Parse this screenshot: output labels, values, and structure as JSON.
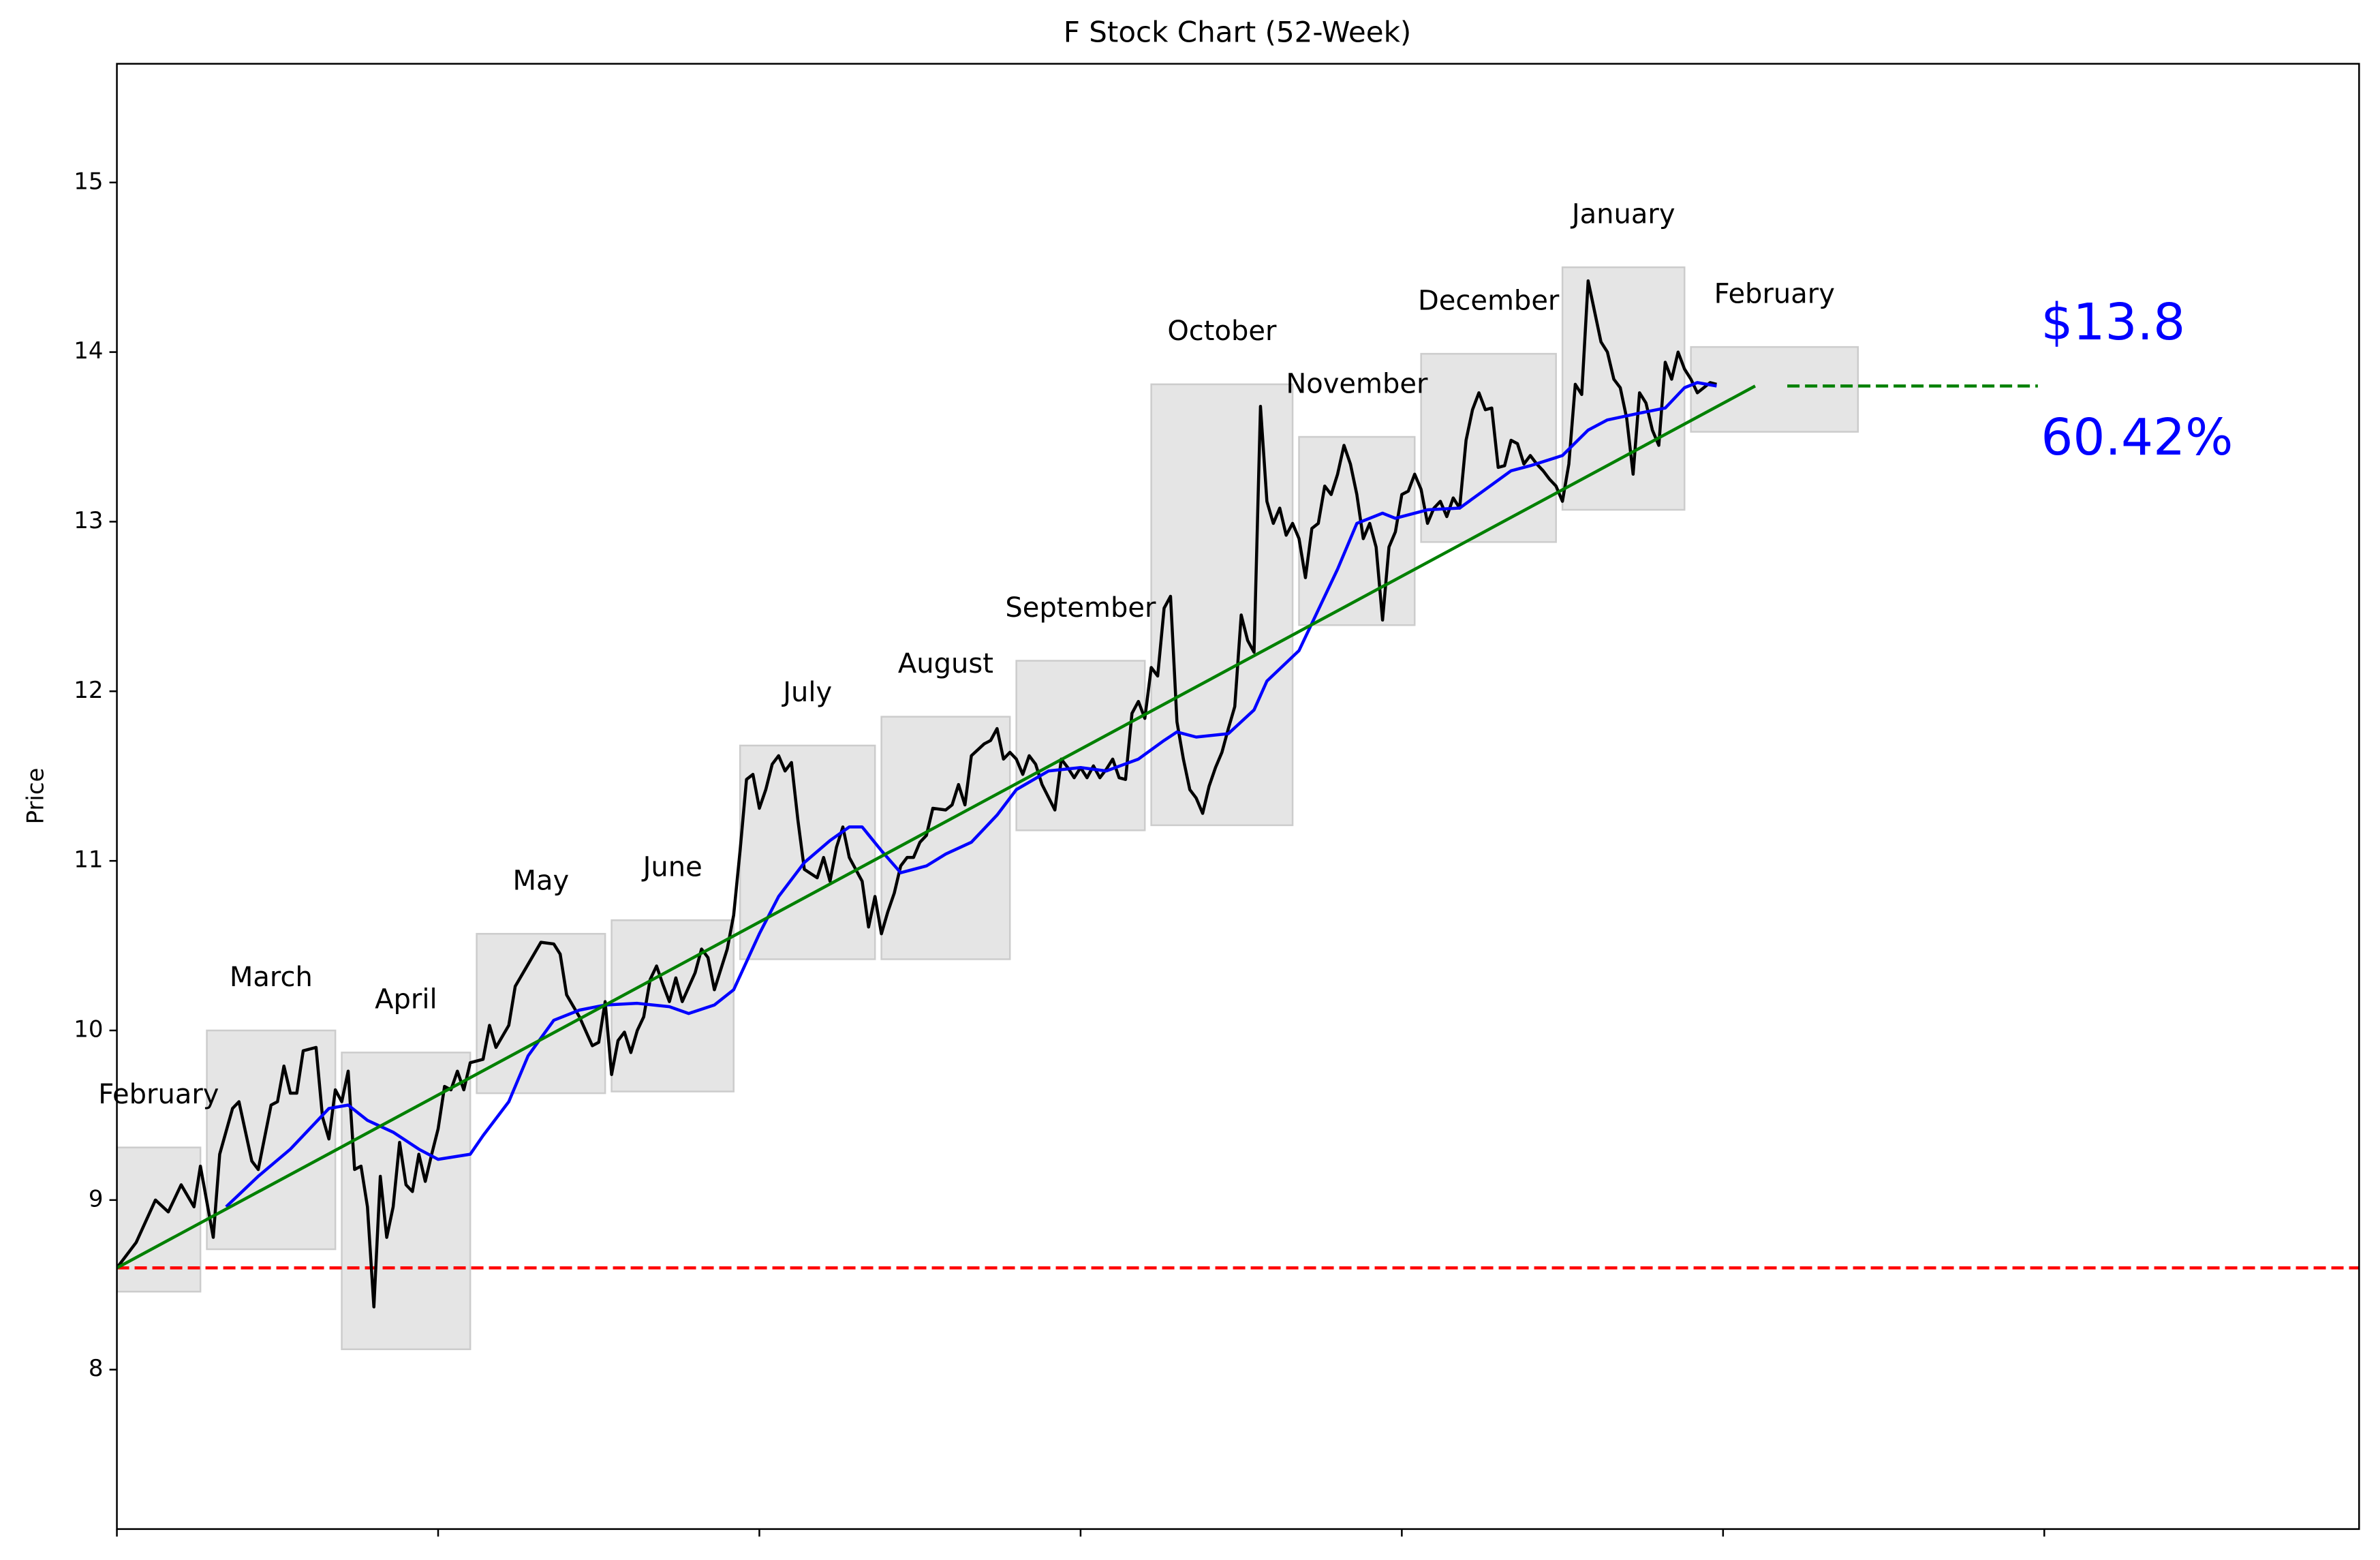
{
  "chart_data": {
    "type": "line",
    "title": "F Stock Chart (52-Week)",
    "ylabel": "Price",
    "xlim": [
      0,
      349
    ],
    "xticks": [
      0,
      50,
      100,
      150,
      200,
      250,
      300
    ],
    "ylim": [
      7.06,
      15.7
    ],
    "yticks": [
      8,
      9,
      10,
      11,
      12,
      13,
      14,
      15
    ],
    "series": [
      {
        "color": "#000000",
        "dashed": false,
        "x": [
          0,
          3,
          6,
          8,
          10,
          12,
          13,
          15,
          16,
          18,
          19,
          21,
          22,
          24,
          25,
          26,
          27,
          28,
          29,
          31,
          32,
          33,
          34,
          35,
          36,
          37,
          38,
          39,
          40,
          41,
          42,
          43,
          44,
          45,
          46,
          47,
          48,
          49,
          50,
          51,
          52,
          53,
          54,
          55,
          57,
          58,
          59,
          61,
          62,
          64,
          66,
          68,
          69,
          70,
          72,
          74,
          75,
          76,
          77,
          78,
          79,
          80,
          81,
          82,
          83,
          84,
          85,
          86,
          87,
          88,
          90,
          91,
          92,
          93,
          95,
          96,
          97,
          98,
          99,
          100,
          101,
          102,
          103,
          104,
          105,
          106,
          107,
          109,
          110,
          111,
          112,
          113,
          114,
          116,
          117,
          118,
          119,
          120,
          121,
          122,
          123,
          124,
          125,
          126,
          127,
          129,
          130,
          131,
          132,
          133,
          135,
          136,
          137,
          138,
          139,
          140,
          141,
          142,
          143,
          144,
          146,
          147,
          148,
          149,
          150,
          151,
          152,
          153,
          154,
          155,
          156,
          157,
          158,
          159,
          160,
          161,
          162,
          163,
          164,
          165,
          166,
          167,
          168,
          169,
          170,
          171,
          172,
          173,
          174,
          175,
          176,
          177,
          178,
          179,
          180,
          181,
          182,
          183,
          184,
          185,
          186,
          187,
          188,
          189,
          190,
          191,
          192,
          193,
          194,
          195,
          196,
          197,
          198,
          199,
          200,
          201,
          202,
          203,
          204,
          205,
          206,
          207,
          208,
          209,
          210,
          211,
          212,
          213,
          214,
          215,
          216,
          217,
          218,
          219,
          220,
          221,
          222,
          223,
          224,
          225,
          226,
          227,
          228,
          229,
          230,
          231,
          232,
          233,
          234,
          235,
          236,
          237,
          238,
          239,
          240,
          241,
          242,
          243,
          244,
          245,
          246,
          247,
          248,
          249
        ],
        "values": [
          8.6,
          8.75,
          9.0,
          8.93,
          9.09,
          8.96,
          9.2,
          8.78,
          9.27,
          9.54,
          9.58,
          9.23,
          9.18,
          9.56,
          9.58,
          9.79,
          9.63,
          9.63,
          9.88,
          9.9,
          9.49,
          9.36,
          9.65,
          9.58,
          9.76,
          9.18,
          9.2,
          8.96,
          8.37,
          9.14,
          8.78,
          8.96,
          9.34,
          9.09,
          9.05,
          9.27,
          9.11,
          9.27,
          9.42,
          9.67,
          9.65,
          9.76,
          9.65,
          9.81,
          9.83,
          10.03,
          9.9,
          10.03,
          10.26,
          10.39,
          10.52,
          10.51,
          10.45,
          10.21,
          10.08,
          9.91,
          9.93,
          10.17,
          9.74,
          9.94,
          9.99,
          9.87,
          10.0,
          10.08,
          10.3,
          10.38,
          10.27,
          10.17,
          10.31,
          10.17,
          10.34,
          10.48,
          10.43,
          10.24,
          10.48,
          10.68,
          11.06,
          11.48,
          11.51,
          11.31,
          11.42,
          11.57,
          11.62,
          11.53,
          11.58,
          11.24,
          10.95,
          10.9,
          11.02,
          10.88,
          11.08,
          11.2,
          11.02,
          10.88,
          10.61,
          10.79,
          10.57,
          10.7,
          10.81,
          10.97,
          11.02,
          11.02,
          11.11,
          11.15,
          11.31,
          11.3,
          11.33,
          11.45,
          11.33,
          11.62,
          11.69,
          11.71,
          11.78,
          11.6,
          11.64,
          11.6,
          11.51,
          11.62,
          11.57,
          11.45,
          11.3,
          11.6,
          11.55,
          11.49,
          11.55,
          11.49,
          11.56,
          11.49,
          11.54,
          11.6,
          11.49,
          11.48,
          11.87,
          11.94,
          11.84,
          12.14,
          12.09,
          12.49,
          12.56,
          11.82,
          11.6,
          11.42,
          11.37,
          11.28,
          11.44,
          11.55,
          11.64,
          11.78,
          11.91,
          12.45,
          12.3,
          12.23,
          13.68,
          13.12,
          12.99,
          13.08,
          12.92,
          12.99,
          12.9,
          12.67,
          12.96,
          12.99,
          13.21,
          13.16,
          13.28,
          13.45,
          13.34,
          13.16,
          12.9,
          12.99,
          12.85,
          12.42,
          12.85,
          12.94,
          13.16,
          13.18,
          13.28,
          13.19,
          12.99,
          13.08,
          13.12,
          13.03,
          13.14,
          13.08,
          13.48,
          13.66,
          13.76,
          13.66,
          13.67,
          13.32,
          13.33,
          13.48,
          13.46,
          13.34,
          13.39,
          13.34,
          13.3,
          13.25,
          13.21,
          13.12,
          13.34,
          13.81,
          13.75,
          14.42,
          14.24,
          14.06,
          14.0,
          13.84,
          13.79,
          13.61,
          13.28,
          13.76,
          13.7,
          13.54,
          13.45,
          13.94,
          13.84,
          14.0,
          13.9,
          13.84,
          13.76,
          13.79,
          13.82,
          13.81
        ]
      },
      {
        "color": "#0000ff",
        "dashed": false,
        "x": [
          17,
          22,
          27,
          30,
          33,
          36,
          39,
          43,
          47,
          50,
          55,
          57,
          61,
          64,
          68,
          72,
          76,
          81,
          86,
          89,
          93,
          96,
          100,
          103,
          107,
          111,
          114,
          116,
          119,
          122,
          126,
          129,
          133,
          137,
          140,
          145,
          150,
          154,
          159,
          163,
          165,
          168,
          173,
          177,
          179,
          184,
          186,
          190,
          193,
          197,
          199,
          204,
          209,
          213,
          217,
          220,
          225,
          229,
          232,
          237,
          241,
          244,
          246,
          249
        ],
        "values": [
          8.96,
          9.14,
          9.3,
          9.42,
          9.54,
          9.56,
          9.47,
          9.4,
          9.3,
          9.24,
          9.27,
          9.38,
          9.58,
          9.85,
          10.06,
          10.12,
          10.15,
          10.16,
          10.14,
          10.1,
          10.15,
          10.24,
          10.57,
          10.79,
          10.99,
          11.12,
          11.2,
          11.2,
          11.06,
          10.93,
          10.97,
          11.04,
          11.11,
          11.27,
          11.42,
          11.53,
          11.55,
          11.53,
          11.6,
          11.71,
          11.76,
          11.73,
          11.75,
          11.89,
          12.06,
          12.24,
          12.4,
          12.72,
          12.99,
          13.05,
          13.02,
          13.07,
          13.08,
          13.19,
          13.3,
          13.33,
          13.39,
          13.54,
          13.6,
          13.64,
          13.67,
          13.79,
          13.82,
          13.8
        ]
      },
      {
        "color": "#008000",
        "dashed": false,
        "x": [
          0,
          255
        ],
        "values": [
          8.6,
          13.8
        ]
      },
      {
        "color": "#008000",
        "dashed": true,
        "x": [
          260,
          299
        ],
        "values": [
          13.8,
          13.8
        ]
      }
    ],
    "hlines": [
      {
        "value": 8.6,
        "color": "#ff0000",
        "dashed": true
      }
    ],
    "box_color": "#e5e5e5",
    "months": [
      {
        "label": "February",
        "x": [
          0,
          13
        ],
        "range": [
          8.46,
          9.31
        ]
      },
      {
        "label": "March",
        "x": [
          14,
          34
        ],
        "range": [
          8.71,
          10.0
        ]
      },
      {
        "label": "April",
        "x": [
          35,
          55
        ],
        "range": [
          8.12,
          9.87
        ]
      },
      {
        "label": "May",
        "x": [
          56,
          76
        ],
        "range": [
          9.63,
          10.57
        ]
      },
      {
        "label": "June",
        "x": [
          77,
          96
        ],
        "range": [
          9.64,
          10.65
        ]
      },
      {
        "label": "July",
        "x": [
          97,
          118
        ],
        "range": [
          10.42,
          11.68
        ]
      },
      {
        "label": "August",
        "x": [
          119,
          139
        ],
        "range": [
          10.42,
          11.85
        ]
      },
      {
        "label": "September",
        "x": [
          140,
          160
        ],
        "range": [
          11.18,
          12.18
        ]
      },
      {
        "label": "October",
        "x": [
          161,
          183
        ],
        "range": [
          11.21,
          13.81
        ]
      },
      {
        "label": "November",
        "x": [
          184,
          202
        ],
        "range": [
          12.39,
          13.5
        ]
      },
      {
        "label": "December",
        "x": [
          203,
          224
        ],
        "range": [
          12.88,
          13.99
        ]
      },
      {
        "label": "January",
        "x": [
          225,
          244
        ],
        "range": [
          13.07,
          14.5
        ]
      },
      {
        "label": "February",
        "x": [
          245,
          271
        ],
        "range": [
          13.53,
          14.03
        ]
      }
    ],
    "annotations": [
      {
        "text": "$13.8",
        "color": "#0000ff"
      },
      {
        "text": "60.42%",
        "color": "#0000ff"
      }
    ]
  }
}
